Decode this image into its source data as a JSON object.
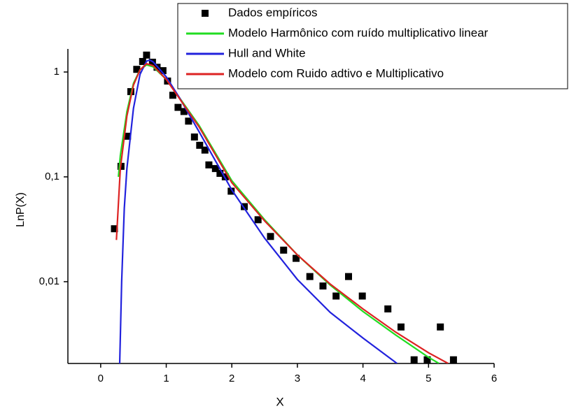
{
  "chart_data": {
    "type": "line",
    "x_label": "X",
    "y_label": "LnP(X)",
    "xlim": [
      -0.5,
      6
    ],
    "xticks": [
      0,
      1,
      2,
      3,
      4,
      5,
      6
    ],
    "ylim": [
      0.00166,
      1.66
    ],
    "log_y": true,
    "yticks": [
      {
        "value": 0.01,
        "label": "0,01"
      },
      {
        "value": 0.1,
        "label": "0,1"
      },
      1
    ],
    "legend": "upper right",
    "series": [
      {
        "name": "Dados empíricos",
        "type": "scatter",
        "color": "#000000",
        "x": [
          0.21,
          0.31,
          0.41,
          0.46,
          0.55,
          0.64,
          0.7,
          0.79,
          0.86,
          0.95,
          1.02,
          1.1,
          1.18,
          1.27,
          1.34,
          1.43,
          1.51,
          1.59,
          1.65,
          1.75,
          1.82,
          1.9,
          1.99,
          2.19,
          2.4,
          2.59,
          2.79,
          2.98,
          3.19,
          3.39,
          3.59,
          3.78,
          3.99,
          4.38,
          4.58,
          4.78,
          4.98,
          5.18,
          5.38
        ],
        "values": [
          0.032,
          0.126,
          0.244,
          0.65,
          1.06,
          1.26,
          1.45,
          1.24,
          1.11,
          1.03,
          0.82,
          0.6,
          0.46,
          0.42,
          0.34,
          0.24,
          0.2,
          0.18,
          0.13,
          0.12,
          0.108,
          0.1,
          0.073,
          0.052,
          0.039,
          0.027,
          0.02,
          0.0167,
          0.0112,
          0.0091,
          0.0073,
          0.0112,
          0.0073,
          0.0055,
          0.0037,
          0.0018,
          0.0018,
          0.0037,
          0.0018
        ]
      },
      {
        "name": "Modelo Harmônico com ruído multiplicativo linear",
        "type": "line",
        "color": "#22dd22",
        "x": [
          0.27,
          0.3,
          0.4,
          0.5,
          0.6,
          0.7,
          0.8,
          1.0,
          1.2,
          1.5,
          2.0,
          2.5,
          3.0,
          3.5,
          4.0,
          4.5,
          5.0,
          5.16
        ],
        "values": [
          0.1,
          0.16,
          0.42,
          0.78,
          1.05,
          1.17,
          1.12,
          0.85,
          0.57,
          0.31,
          0.092,
          0.039,
          0.018,
          0.0093,
          0.0052,
          0.0031,
          0.0019,
          0.00166
        ]
      },
      {
        "name": "Hull and White",
        "type": "line",
        "color": "#2222dd",
        "x": [
          0.29,
          0.32,
          0.36,
          0.4,
          0.5,
          0.6,
          0.7,
          0.75,
          0.8,
          1.0,
          1.2,
          1.5,
          2.0,
          2.5,
          3.0,
          3.5,
          4.0,
          4.52
        ],
        "values": [
          0.00166,
          0.01,
          0.05,
          0.12,
          0.45,
          0.95,
          1.27,
          1.3,
          1.25,
          0.9,
          0.57,
          0.27,
          0.075,
          0.026,
          0.0105,
          0.0051,
          0.0029,
          0.00166
        ]
      },
      {
        "name": "Modelo com Ruido adtivo e Multiplicativo",
        "type": "line",
        "color": "#dd2222",
        "x": [
          0.24,
          0.3,
          0.4,
          0.5,
          0.6,
          0.7,
          0.8,
          1.0,
          1.2,
          1.5,
          2.0,
          2.5,
          3.0,
          3.5,
          4.0,
          4.5,
          5.0,
          5.3
        ],
        "values": [
          0.025,
          0.12,
          0.38,
          0.75,
          1.05,
          1.2,
          1.15,
          0.85,
          0.56,
          0.3,
          0.088,
          0.038,
          0.018,
          0.0095,
          0.0055,
          0.0033,
          0.0021,
          0.00166
        ]
      }
    ]
  }
}
